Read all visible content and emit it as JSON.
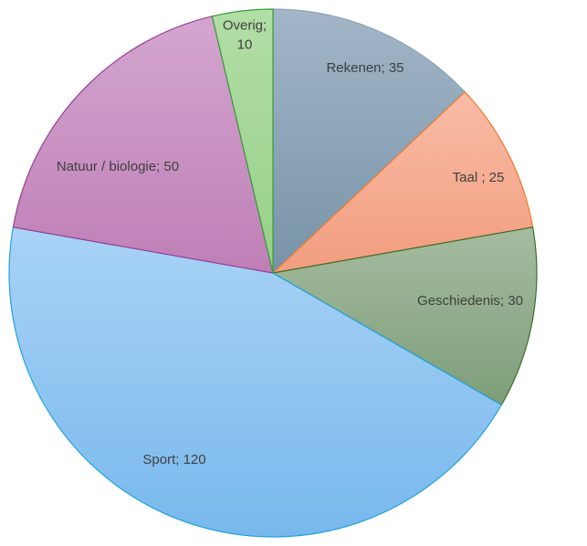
{
  "chart_data": {
    "type": "pie",
    "title": "",
    "categories": [
      "Rekenen",
      "Taal ",
      "Geschiedenis",
      "Sport",
      "Natuur / biologie",
      "Overig"
    ],
    "values": [
      35,
      25,
      30,
      120,
      50,
      10
    ],
    "labels": [
      [
        "Rekenen; 35"
      ],
      [
        "Taal ; 25"
      ],
      [
        "Geschiedenis; 30"
      ],
      [
        "Sport; 120"
      ],
      [
        "Natuur / biologie; 50"
      ],
      [
        "Overig;",
        "10"
      ]
    ],
    "start_angle_deg": 0,
    "direction": "clockwise",
    "legend": "none",
    "colors": [
      {
        "top": "#a2b6c8",
        "bottom": "#7893a8",
        "stroke": "#8ea3b6"
      },
      {
        "top": "#f8bca6",
        "bottom": "#f29d7e",
        "stroke": "#ef7b2e"
      },
      {
        "top": "#a6bba0",
        "bottom": "#7d9e79",
        "stroke": "#3f6e2a"
      },
      {
        "top": "#a9d3f6",
        "bottom": "#78b8ec",
        "stroke": "#1ea2e0"
      },
      {
        "top": "#d3a6cf",
        "bottom": "#bf7fb6",
        "stroke": "#9a3f96"
      },
      {
        "top": "#b2dea6",
        "bottom": "#96d088",
        "stroke": "#3a9a3a"
      }
    ]
  }
}
